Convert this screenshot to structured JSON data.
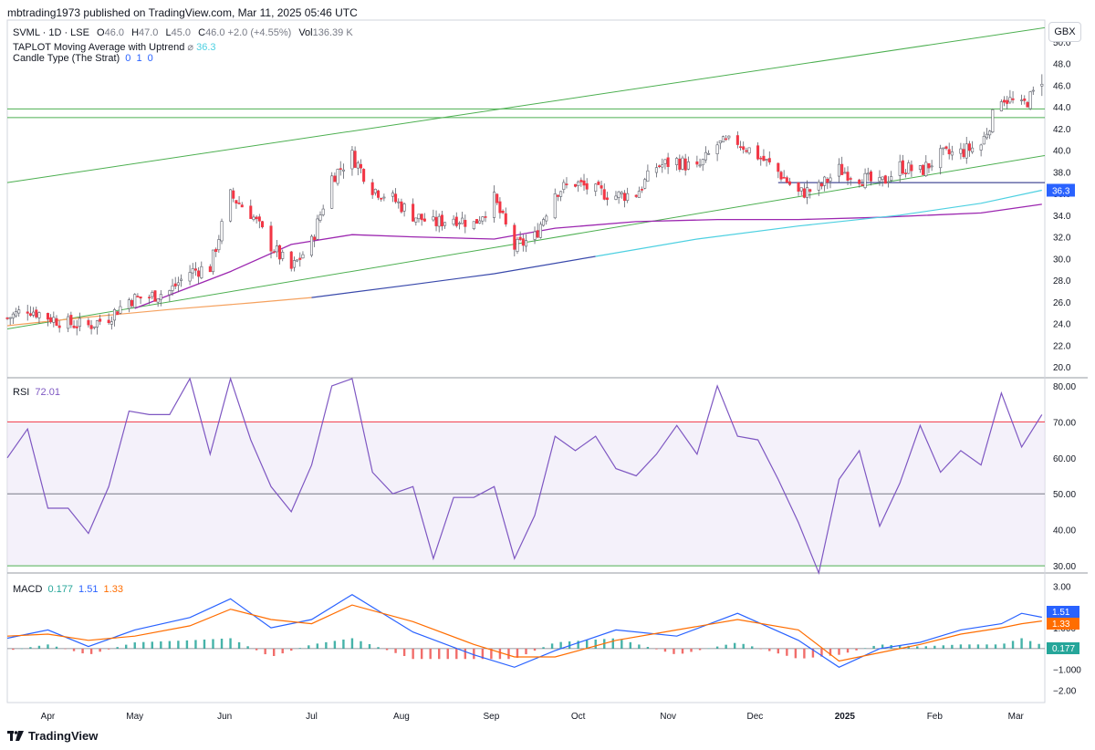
{
  "header": {
    "publisher": "mbtrading1973 published on TradingView.com, Mar 11, 2025 05:46 UTC"
  },
  "footer": {
    "brand": "TradingView"
  },
  "currency_button": "GBX",
  "legend": {
    "symbol": "SVML · 1D · LSE",
    "ohlc": [
      {
        "label": "O",
        "value": "46.0"
      },
      {
        "label": "H",
        "value": "47.0"
      },
      {
        "label": "L",
        "value": "45.0"
      },
      {
        "label": "C",
        "value": "46.0"
      }
    ],
    "change": "+2.0 (+4.55%)",
    "volume_label": "Vol",
    "volume": "136.39 K",
    "ma_name": "TAPLOT Moving Average with Uptrend",
    "ma_symbol": "⌀",
    "ma_value": "36.3",
    "strat_name": "Candle Type (The Strat)",
    "strat_values": [
      "0",
      "1",
      "0"
    ],
    "rsi_name": "RSI",
    "rsi_value": "72.01",
    "macd_name": "MACD",
    "macd_values": [
      "0.177",
      "1.51",
      "1.33"
    ]
  },
  "colors": {
    "up": "#ffffff",
    "down": "#f23645",
    "wick": "#5d606b",
    "ma_short": "#9c27b0",
    "ma_long_a": "#f5a15e",
    "ma_long_b": "#3949ab",
    "ma_long_c": "#4dd0e1",
    "trend": "#4caf50",
    "support": "#1a237e",
    "rsi": "#7e57c2",
    "rsi_upper": "#f23645",
    "rsi_lower": "#4caf50",
    "rsi_mid": "#787b86",
    "macd": "#2962ff",
    "signal": "#ff6d00",
    "hist_pos": "#26a69a",
    "hist_neg": "#ef5350",
    "price_tag": "#2962ff"
  },
  "chart_data": [
    {
      "type": "candlestick",
      "title": "SVML · 1D · LSE",
      "x_ticks": [
        "Apr",
        "May",
        "Jun",
        "Jul",
        "Aug",
        "Sep",
        "Oct",
        "Nov",
        "Dec",
        "2025",
        "Feb",
        "Mar"
      ],
      "x_tick_dates": [
        "2024-04-01",
        "2024-05-01",
        "2024-06-01",
        "2024-07-01",
        "2024-08-01",
        "2024-09-01",
        "2024-10-01",
        "2024-11-01",
        "2024-12-01",
        "2025-01-01",
        "2025-02-01",
        "2025-03-01"
      ],
      "x_range": [
        "2024-03-18",
        "2025-03-11"
      ],
      "ylim": [
        19,
        52
      ],
      "y_ticks": [
        20.0,
        22.0,
        24.0,
        26.0,
        28.0,
        30.0,
        32.0,
        34.0,
        36.0,
        38.0,
        40.0,
        42.0,
        44.0,
        46.0,
        48.0,
        50.0
      ],
      "price_tag": {
        "value": 36.3,
        "label": "36.3"
      },
      "grid": false,
      "close_path": [
        [
          "2024-03-18",
          24.5
        ],
        [
          "2024-03-25",
          25.4
        ],
        [
          "2024-04-01",
          24.6
        ],
        [
          "2024-04-08",
          24.0
        ],
        [
          "2024-04-15",
          23.8
        ],
        [
          "2024-04-22",
          24.6
        ],
        [
          "2024-04-29",
          26.2
        ],
        [
          "2024-05-06",
          26.5
        ],
        [
          "2024-05-13",
          27.0
        ],
        [
          "2024-05-20",
          28.8
        ],
        [
          "2024-05-27",
          29.2
        ],
        [
          "2024-06-03",
          35.8
        ],
        [
          "2024-06-10",
          34.2
        ],
        [
          "2024-06-17",
          31.2
        ],
        [
          "2024-06-24",
          29.0
        ],
        [
          "2024-07-01",
          31.5
        ],
        [
          "2024-07-08",
          37.5
        ],
        [
          "2024-07-15",
          39.5
        ],
        [
          "2024-07-22",
          36.5
        ],
        [
          "2024-07-29",
          35.5
        ],
        [
          "2024-08-05",
          34.0
        ],
        [
          "2024-08-12",
          33.2
        ],
        [
          "2024-08-19",
          33.8
        ],
        [
          "2024-08-26",
          33.2
        ],
        [
          "2024-09-02",
          35.5
        ],
        [
          "2024-09-09",
          31.0
        ],
        [
          "2024-09-16",
          32.0
        ],
        [
          "2024-09-23",
          36.2
        ],
        [
          "2024-09-30",
          37.0
        ],
        [
          "2024-10-07",
          36.2
        ],
        [
          "2024-10-14",
          35.8
        ],
        [
          "2024-10-21",
          36.0
        ],
        [
          "2024-10-28",
          38.5
        ],
        [
          "2024-11-04",
          39.0
        ],
        [
          "2024-11-11",
          38.2
        ],
        [
          "2024-11-18",
          40.5
        ],
        [
          "2024-11-25",
          40.8
        ],
        [
          "2024-12-02",
          39.5
        ],
        [
          "2024-12-09",
          38.0
        ],
        [
          "2024-12-16",
          36.0
        ],
        [
          "2024-12-23",
          36.5
        ],
        [
          "2024-12-30",
          38.2
        ],
        [
          "2025-01-06",
          37.5
        ],
        [
          "2025-01-13",
          36.8
        ],
        [
          "2025-01-20",
          38.5
        ],
        [
          "2025-01-27",
          38.0
        ],
        [
          "2025-02-03",
          39.5
        ],
        [
          "2025-02-10",
          39.8
        ],
        [
          "2025-02-17",
          40.5
        ],
        [
          "2025-02-24",
          45.0
        ],
        [
          "2025-03-03",
          44.0
        ],
        [
          "2025-03-10",
          46.0
        ]
      ],
      "last_candle": {
        "date": "2025-03-10",
        "open": 46.0,
        "high": 47.0,
        "low": 45.0,
        "close": 46.0
      },
      "moving_averages": [
        {
          "role": "short",
          "points": [
            [
              "2024-05-01",
              25.4
            ],
            [
              "2024-06-03",
              28.8
            ],
            [
              "2024-06-24",
              31.3
            ],
            [
              "2024-07-15",
              32.2
            ],
            [
              "2024-08-05",
              32.0
            ],
            [
              "2024-09-02",
              31.8
            ],
            [
              "2024-09-23",
              32.8
            ],
            [
              "2024-10-21",
              33.4
            ],
            [
              "2024-11-18",
              33.6
            ],
            [
              "2024-12-16",
              33.6
            ],
            [
              "2025-01-13",
              33.8
            ],
            [
              "2025-02-17",
              34.2
            ],
            [
              "2025-03-10",
              35.0
            ]
          ]
        },
        {
          "role": "long",
          "points": [
            [
              "2024-03-18",
              23.8
            ],
            [
              "2024-04-15",
              24.6
            ],
            [
              "2024-05-13",
              25.3
            ],
            [
              "2024-06-10",
              25.9
            ],
            [
              "2024-07-01",
              26.4
            ],
            [
              "2024-08-05",
              27.6
            ],
            [
              "2024-09-02",
              28.6
            ],
            [
              "2024-10-07",
              30.2
            ],
            [
              "2024-11-11",
              31.8
            ],
            [
              "2024-12-16",
              33.0
            ],
            [
              "2025-01-20",
              34.0
            ],
            [
              "2025-02-17",
              35.1
            ],
            [
              "2025-03-10",
              36.3
            ]
          ]
        }
      ],
      "trend_lines": [
        {
          "from": [
            "2024-03-18",
            37.0
          ],
          "to": [
            "2025-03-11",
            51.3
          ]
        },
        {
          "from": [
            "2024-03-18",
            23.5
          ],
          "to": [
            "2025-03-11",
            39.5
          ]
        }
      ],
      "horizontal_levels": [
        43.8,
        43.0,
        37.0
      ]
    },
    {
      "type": "line",
      "title": "RSI",
      "ylim": [
        28,
        82
      ],
      "y_ticks": [
        30.0,
        40.0,
        50.0,
        60.0,
        70.0,
        80.0
      ],
      "bands": [
        70,
        50,
        30
      ],
      "current": 72.01,
      "points": [
        [
          "2024-03-18",
          60
        ],
        [
          "2024-03-25",
          68
        ],
        [
          "2024-04-01",
          46
        ],
        [
          "2024-04-08",
          46
        ],
        [
          "2024-04-15",
          39
        ],
        [
          "2024-04-22",
          52
        ],
        [
          "2024-04-29",
          73
        ],
        [
          "2024-05-06",
          72
        ],
        [
          "2024-05-13",
          72
        ],
        [
          "2024-05-20",
          82
        ],
        [
          "2024-05-27",
          61
        ],
        [
          "2024-06-03",
          82
        ],
        [
          "2024-06-10",
          65
        ],
        [
          "2024-06-17",
          52
        ],
        [
          "2024-06-24",
          45
        ],
        [
          "2024-07-01",
          58
        ],
        [
          "2024-07-08",
          80
        ],
        [
          "2024-07-15",
          82
        ],
        [
          "2024-07-22",
          56
        ],
        [
          "2024-07-29",
          50
        ],
        [
          "2024-08-05",
          52
        ],
        [
          "2024-08-12",
          32
        ],
        [
          "2024-08-19",
          49
        ],
        [
          "2024-08-26",
          49
        ],
        [
          "2024-09-02",
          52
        ],
        [
          "2024-09-09",
          32
        ],
        [
          "2024-09-16",
          44
        ],
        [
          "2024-09-23",
          66
        ],
        [
          "2024-09-30",
          62
        ],
        [
          "2024-10-07",
          66
        ],
        [
          "2024-10-14",
          57
        ],
        [
          "2024-10-21",
          55
        ],
        [
          "2024-10-28",
          61
        ],
        [
          "2024-11-04",
          69
        ],
        [
          "2024-11-11",
          61
        ],
        [
          "2024-11-18",
          80
        ],
        [
          "2024-11-25",
          66
        ],
        [
          "2024-12-02",
          65
        ],
        [
          "2024-12-09",
          54
        ],
        [
          "2024-12-16",
          42
        ],
        [
          "2024-12-23",
          28
        ],
        [
          "2024-12-30",
          54
        ],
        [
          "2025-01-06",
          62
        ],
        [
          "2025-01-13",
          41
        ],
        [
          "2025-01-20",
          53
        ],
        [
          "2025-01-27",
          69
        ],
        [
          "2025-02-03",
          56
        ],
        [
          "2025-02-10",
          62
        ],
        [
          "2025-02-17",
          58
        ],
        [
          "2025-02-24",
          78
        ],
        [
          "2025-03-03",
          63
        ],
        [
          "2025-03-10",
          72
        ]
      ]
    },
    {
      "type": "bar+line",
      "title": "MACD",
      "ylim": [
        -2.6,
        3.6
      ],
      "y_ticks": [
        3.0,
        2.0,
        1.0,
        0.0,
        -1.0,
        -2.0
      ],
      "y_tick_labels": [
        "3.00",
        "",
        "1.000",
        "",
        "−1.000",
        "−2.00"
      ],
      "series": [
        {
          "name": "MACD",
          "points": [
            [
              "2024-03-18",
              0.5
            ],
            [
              "2024-04-01",
              0.9
            ],
            [
              "2024-04-15",
              0.1
            ],
            [
              "2024-05-01",
              0.9
            ],
            [
              "2024-05-20",
              1.5
            ],
            [
              "2024-06-03",
              2.4
            ],
            [
              "2024-06-17",
              1.0
            ],
            [
              "2024-07-01",
              1.4
            ],
            [
              "2024-07-15",
              2.6
            ],
            [
              "2024-08-05",
              0.8
            ],
            [
              "2024-08-26",
              -0.3
            ],
            [
              "2024-09-09",
              -0.9
            ],
            [
              "2024-09-23",
              -0.1
            ],
            [
              "2024-10-14",
              0.9
            ],
            [
              "2024-11-04",
              0.6
            ],
            [
              "2024-11-25",
              1.7
            ],
            [
              "2024-12-16",
              0.4
            ],
            [
              "2024-12-30",
              -0.9
            ],
            [
              "2025-01-13",
              0.0
            ],
            [
              "2025-01-27",
              0.3
            ],
            [
              "2025-02-10",
              0.9
            ],
            [
              "2025-02-24",
              1.2
            ],
            [
              "2025-03-03",
              1.7
            ],
            [
              "2025-03-10",
              1.51
            ]
          ]
        },
        {
          "name": "Signal",
          "points": [
            [
              "2024-03-18",
              0.6
            ],
            [
              "2024-04-01",
              0.7
            ],
            [
              "2024-04-15",
              0.4
            ],
            [
              "2024-05-01",
              0.6
            ],
            [
              "2024-05-20",
              1.1
            ],
            [
              "2024-06-03",
              1.9
            ],
            [
              "2024-06-17",
              1.4
            ],
            [
              "2024-07-01",
              1.2
            ],
            [
              "2024-07-15",
              2.1
            ],
            [
              "2024-08-05",
              1.3
            ],
            [
              "2024-08-26",
              0.2
            ],
            [
              "2024-09-09",
              -0.4
            ],
            [
              "2024-09-23",
              -0.4
            ],
            [
              "2024-10-14",
              0.4
            ],
            [
              "2024-11-04",
              0.9
            ],
            [
              "2024-11-25",
              1.4
            ],
            [
              "2024-12-16",
              0.9
            ],
            [
              "2024-12-30",
              -0.6
            ],
            [
              "2025-01-13",
              -0.2
            ],
            [
              "2025-01-27",
              0.2
            ],
            [
              "2025-02-10",
              0.7
            ],
            [
              "2025-02-24",
              1.0
            ],
            [
              "2025-03-03",
              1.2
            ],
            [
              "2025-03-10",
              1.33
            ]
          ]
        }
      ],
      "histogram_current": 0.177
    }
  ]
}
